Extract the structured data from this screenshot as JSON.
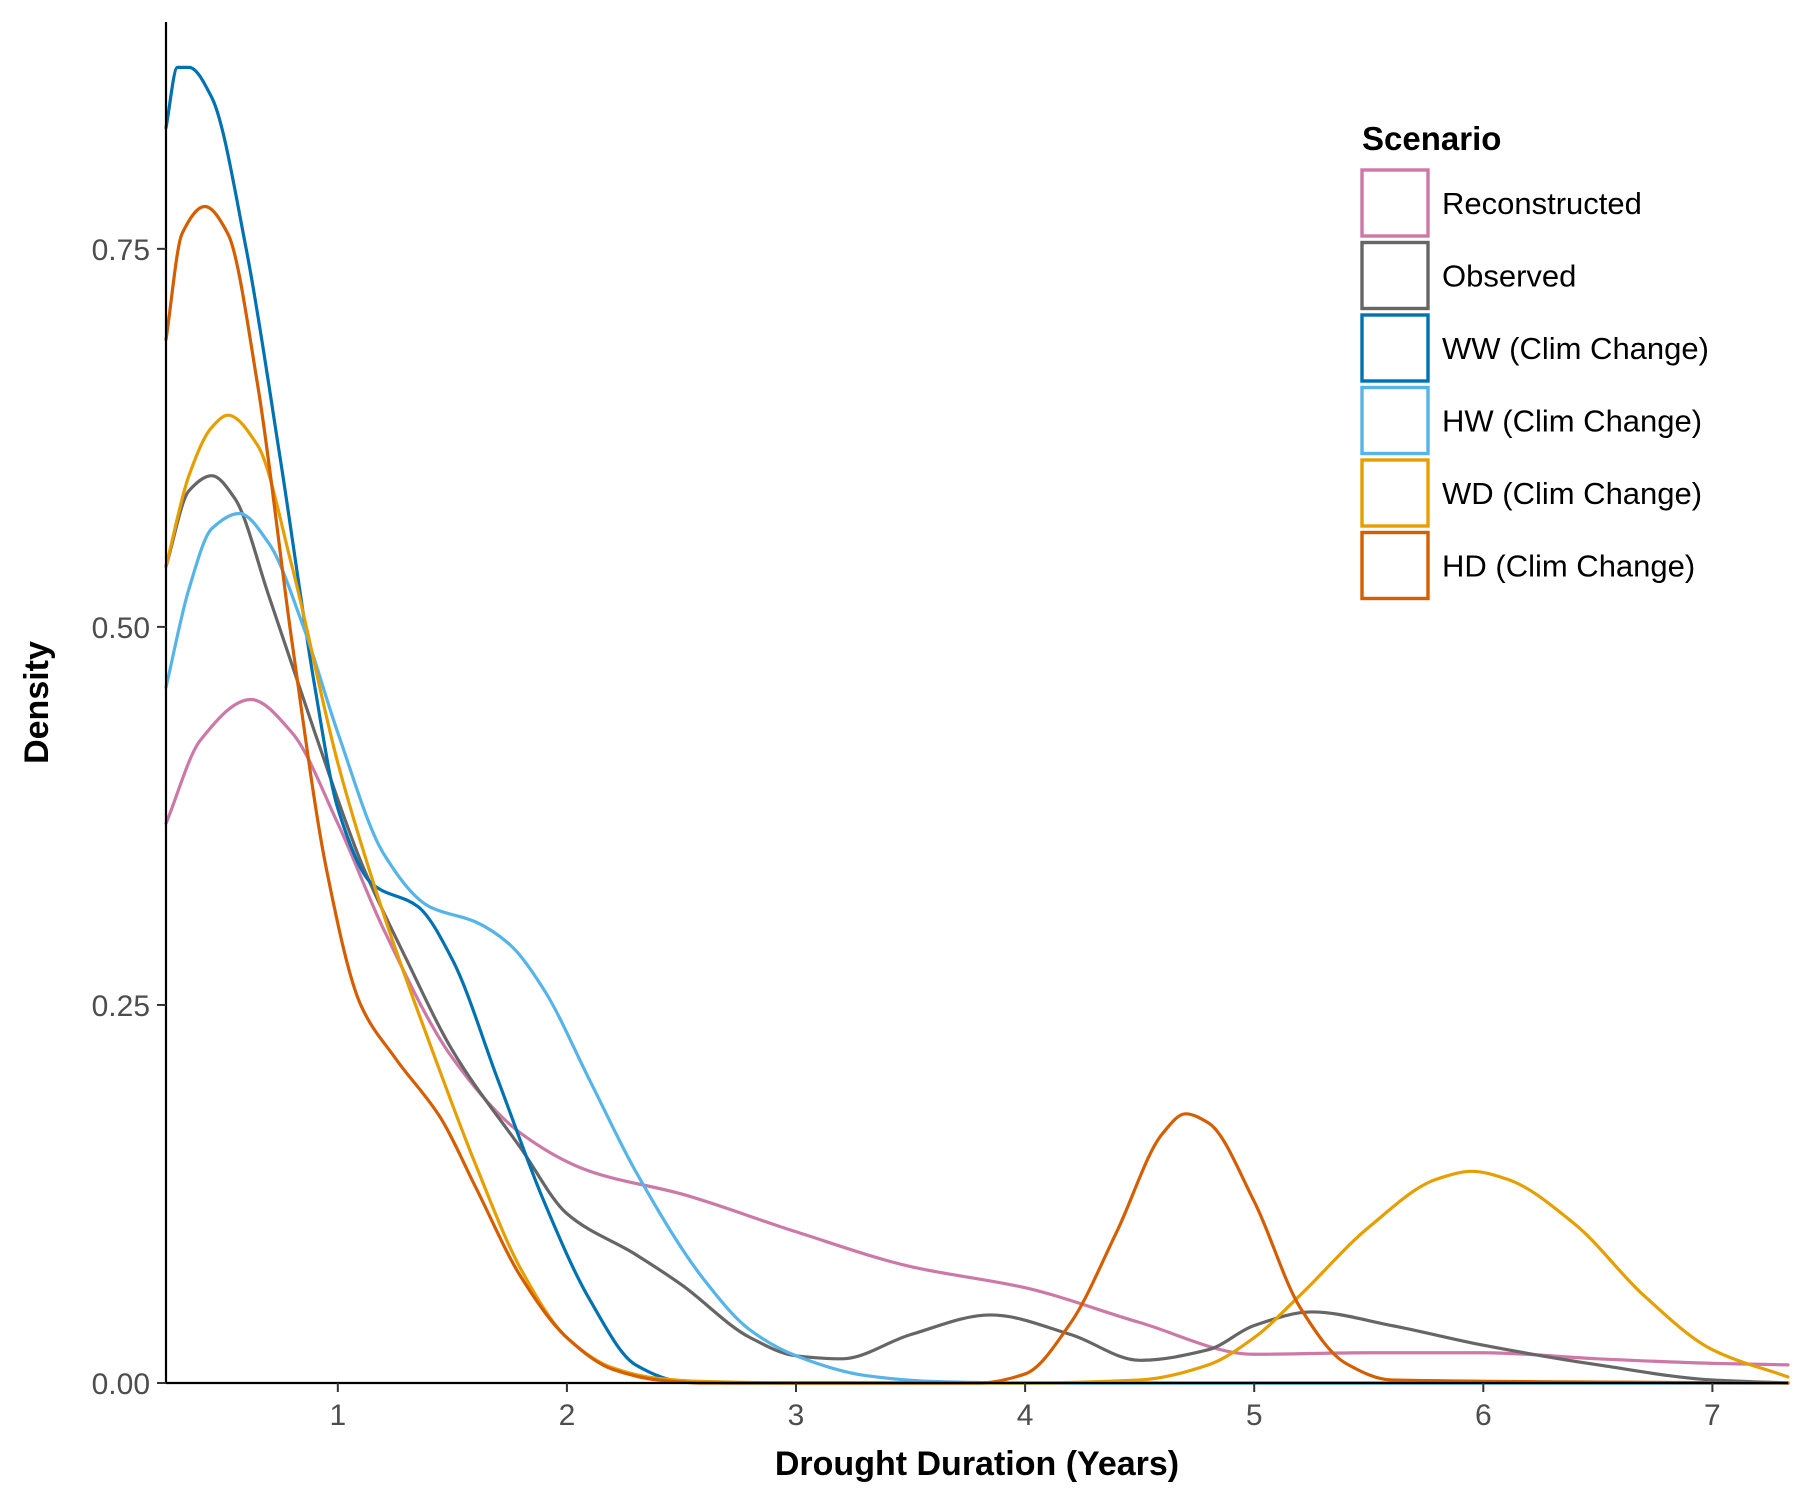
{
  "chart_data": {
    "type": "line",
    "title": "",
    "xlabel": "Drought Duration (Years)",
    "ylabel": "Density",
    "xlim": [
      0.25,
      7.33
    ],
    "ylim": [
      0,
      0.9
    ],
    "xticks": [
      1,
      2,
      3,
      4,
      5,
      6,
      7
    ],
    "xtick_labels": [
      "1",
      "2",
      "3",
      "4",
      "5",
      "6",
      "7"
    ],
    "yticks": [
      0,
      0.25,
      0.5,
      0.75
    ],
    "ytick_labels": [
      "0.00",
      "0.25",
      "0.50",
      "0.75"
    ],
    "grid": false,
    "legend": {
      "title": "Scenario",
      "position": "top-right"
    },
    "series": [
      {
        "name": "Reconstructed",
        "color": "#CC79A7",
        "x": [
          0.25,
          0.4,
          0.62,
          0.8,
          1.0,
          1.2,
          1.5,
          1.8,
          2.1,
          2.5,
          3.0,
          3.5,
          4.0,
          4.5,
          5.0,
          5.5,
          6.0,
          6.5,
          7.0,
          7.33
        ],
        "y": [
          0.37,
          0.425,
          0.452,
          0.43,
          0.37,
          0.3,
          0.215,
          0.165,
          0.14,
          0.125,
          0.1,
          0.077,
          0.063,
          0.04,
          0.019,
          0.02,
          0.02,
          0.016,
          0.013,
          0.012
        ]
      },
      {
        "name": "Observed",
        "color": "#666666",
        "x": [
          0.25,
          0.35,
          0.45,
          0.55,
          0.7,
          0.9,
          1.1,
          1.3,
          1.5,
          1.8,
          2.0,
          2.3,
          2.5,
          2.8,
          3.0,
          3.2,
          3.5,
          3.85,
          4.2,
          4.5,
          4.8,
          5.0,
          5.25,
          5.6,
          6.0,
          6.5,
          7.0,
          7.33
        ],
        "y": [
          0.54,
          0.59,
          0.6,
          0.585,
          0.52,
          0.43,
          0.345,
          0.28,
          0.22,
          0.155,
          0.112,
          0.085,
          0.065,
          0.03,
          0.018,
          0.016,
          0.032,
          0.045,
          0.032,
          0.015,
          0.022,
          0.038,
          0.047,
          0.038,
          0.025,
          0.012,
          0.002,
          0.0
        ]
      },
      {
        "name": "WW (Clim Change)",
        "color": "#0072B2",
        "x": [
          0.25,
          0.3,
          0.35,
          0.45,
          0.6,
          0.75,
          0.9,
          1.0,
          1.15,
          1.35,
          1.5,
          1.7,
          1.9,
          2.1,
          2.3,
          2.5,
          2.7,
          3.0,
          3.5,
          7.33
        ],
        "y": [
          0.83,
          0.87,
          0.87,
          0.85,
          0.75,
          0.61,
          0.46,
          0.38,
          0.33,
          0.315,
          0.28,
          0.2,
          0.12,
          0.055,
          0.012,
          0.001,
          0.0,
          0.0,
          0.0,
          0.0
        ]
      },
      {
        "name": "HW (Clim Change)",
        "color": "#56B4E9",
        "x": [
          0.25,
          0.35,
          0.45,
          0.57,
          0.7,
          0.85,
          1.0,
          1.2,
          1.4,
          1.6,
          1.75,
          1.9,
          2.1,
          2.3,
          2.6,
          2.8,
          3.0,
          3.3,
          3.6,
          4.0,
          7.33
        ],
        "y": [
          0.46,
          0.525,
          0.565,
          0.575,
          0.555,
          0.5,
          0.43,
          0.35,
          0.315,
          0.305,
          0.29,
          0.26,
          0.2,
          0.14,
          0.068,
          0.035,
          0.018,
          0.005,
          0.001,
          0.0,
          0.0
        ]
      },
      {
        "name": "WD (Clim Change)",
        "color": "#E69F00",
        "x": [
          0.25,
          0.35,
          0.45,
          0.52,
          0.65,
          0.8,
          1.0,
          1.2,
          1.4,
          1.6,
          1.8,
          2.0,
          2.2,
          2.4,
          2.6,
          3.0,
          4.0,
          4.5,
          4.8,
          5.0,
          5.2,
          5.5,
          5.8,
          5.95,
          6.1,
          6.4,
          6.7,
          7.0,
          7.33
        ],
        "y": [
          0.54,
          0.6,
          0.632,
          0.64,
          0.62,
          0.54,
          0.41,
          0.31,
          0.225,
          0.145,
          0.075,
          0.03,
          0.01,
          0.003,
          0.001,
          0.0,
          0.0,
          0.002,
          0.012,
          0.03,
          0.058,
          0.103,
          0.135,
          0.14,
          0.135,
          0.105,
          0.058,
          0.022,
          0.004
        ]
      },
      {
        "name": "HD (Clim Change)",
        "color": "#D55E00",
        "x": [
          0.25,
          0.32,
          0.42,
          0.52,
          0.65,
          0.8,
          0.95,
          1.1,
          1.25,
          1.45,
          1.6,
          1.8,
          2.0,
          2.2,
          2.4,
          2.6,
          3.0,
          3.8,
          4.0,
          4.2,
          4.4,
          4.6,
          4.7,
          4.8,
          5.0,
          5.2,
          5.4,
          5.6,
          7.33
        ],
        "y": [
          0.69,
          0.76,
          0.778,
          0.76,
          0.66,
          0.49,
          0.34,
          0.25,
          0.215,
          0.175,
          0.13,
          0.07,
          0.03,
          0.009,
          0.002,
          0.0,
          0.0,
          0.0,
          0.006,
          0.04,
          0.1,
          0.165,
          0.178,
          0.172,
          0.12,
          0.05,
          0.013,
          0.002,
          0.0
        ]
      }
    ]
  }
}
